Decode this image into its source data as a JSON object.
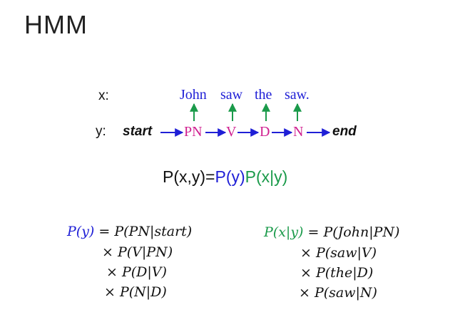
{
  "title": "HMM",
  "colors": {
    "blue": "#1f1fd6",
    "green": "#1a9a4a",
    "pink": "#d02090"
  },
  "diagram": {
    "x_label": "x:",
    "y_label": "y:",
    "words": [
      "John",
      "saw",
      "the",
      "saw."
    ],
    "tags": [
      "PN",
      "V",
      "D",
      "N"
    ],
    "start": "start",
    "end": "end"
  },
  "joint": {
    "prefix": "P(x,y)=",
    "py": "P(y)",
    "pxy": "P(x|y)"
  },
  "py_expansion": {
    "lhs": "P(y)",
    "first": " = P(PN|start)",
    "terms": [
      "× P(V|PN)",
      "× P(D|V)",
      "× P(N|D)"
    ]
  },
  "pxy_expansion": {
    "lhs": "P(x|y)",
    "first": " = P(John|PN)",
    "terms": [
      "× P(saw|V)",
      "× P(the|D)",
      "× P(saw|N)"
    ]
  }
}
